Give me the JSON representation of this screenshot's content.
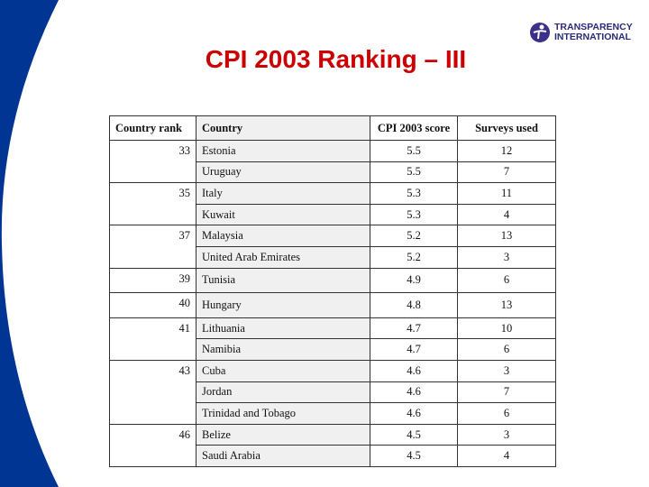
{
  "title": "CPI 2003 Ranking – III",
  "logo": {
    "line1": "TRANSPARENCY",
    "line2": "INTERNATIONAL"
  },
  "colors": {
    "swoosh": "#003594",
    "title": "#cc0000",
    "country_column": "#f0f0f0"
  },
  "table": {
    "headers": [
      "Country rank",
      "Country",
      "CPI 2003 score",
      "Surveys used"
    ],
    "groups": [
      {
        "rank": "33",
        "rows": [
          [
            "Estonia",
            "5.5",
            "12"
          ],
          [
            "Uruguay",
            "5.5",
            "7"
          ]
        ]
      },
      {
        "rank": "35",
        "rows": [
          [
            "Italy",
            "5.3",
            "11"
          ],
          [
            "Kuwait",
            "5.3",
            "4"
          ]
        ]
      },
      {
        "rank": "37",
        "rows": [
          [
            "Malaysia",
            "5.2",
            "13"
          ],
          [
            "United Arab Emirates",
            "5.2",
            "3"
          ]
        ]
      },
      {
        "rank": "39",
        "rows": [
          [
            "Tunisia",
            "4.9",
            "6"
          ]
        ]
      },
      {
        "rank": "40",
        "rows": [
          [
            "Hungary",
            "4.8",
            "13"
          ]
        ]
      },
      {
        "rank": "41",
        "rows": [
          [
            "Lithuania",
            "4.7",
            "10"
          ],
          [
            "Namibia",
            "4.7",
            "6"
          ]
        ]
      },
      {
        "rank": "43",
        "rows": [
          [
            "Cuba",
            "4.6",
            "3"
          ],
          [
            "Jordan",
            "4.6",
            "7"
          ],
          [
            "Trinidad and Tobago",
            "4.6",
            "6"
          ]
        ]
      },
      {
        "rank": "46",
        "rows": [
          [
            "Belize",
            "4.5",
            "3"
          ],
          [
            "Saudi Arabia",
            "4.5",
            "4"
          ]
        ]
      }
    ]
  }
}
